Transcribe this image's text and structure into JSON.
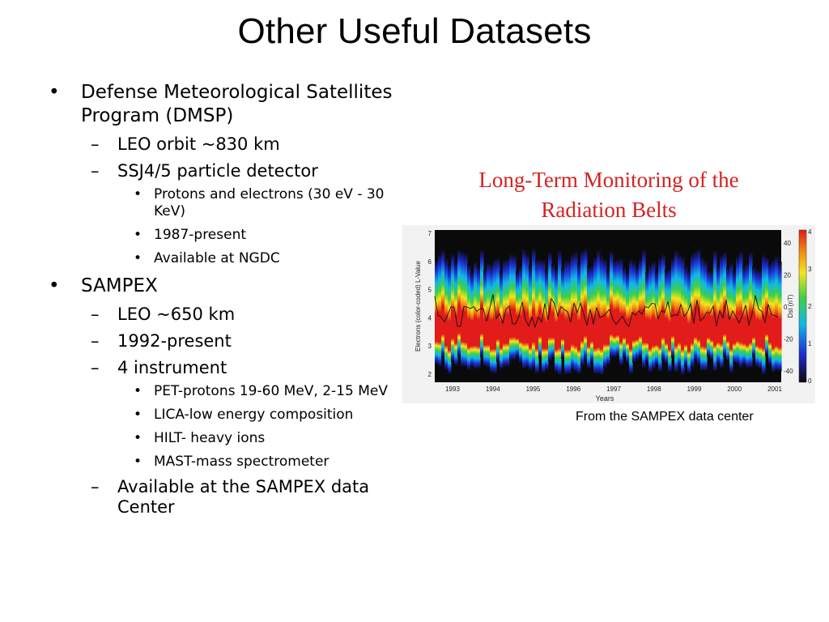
{
  "slide": {
    "title": "Other Useful Datasets",
    "bullets": [
      {
        "text": "Defense Meteorological Satellites Program (DMSP)",
        "children": [
          {
            "text": "LEO orbit ~830 km",
            "children": []
          },
          {
            "text": "SSJ4/5 particle detector",
            "children": [
              {
                "text": "Protons and electrons (30 eV - 30 KeV)"
              },
              {
                "text": "1987-present"
              },
              {
                "text": "Available at NGDC"
              }
            ]
          }
        ]
      },
      {
        "text": "SAMPEX",
        "children": [
          {
            "text": "LEO ~650 km",
            "children": []
          },
          {
            "text": "1992-present",
            "children": []
          },
          {
            "text": "4 instrument",
            "children": [
              {
                "text": "PET-protons 19-60 MeV, 2-15 MeV"
              },
              {
                "text": "LICA-low energy composition"
              },
              {
                "text": "HILT- heavy ions"
              },
              {
                "text": "MAST-mass spectrometer"
              }
            ]
          },
          {
            "text": "Available at the SAMPEX data Center",
            "children": []
          }
        ]
      }
    ],
    "figure": {
      "title_line1": "Long-Term Monitoring of the",
      "title_line2": "Radiation Belts",
      "title_color": "#d42222",
      "caption": "From the SAMPEX data center",
      "ylabel_left": "Electrons (color-coded) L-Value",
      "ylabel_right": "Dst (nT)",
      "xlabel": "Years",
      "x_ticks": [
        "1993",
        "1994",
        "1995",
        "1996",
        "1997",
        "1998",
        "1999",
        "2000",
        "2001"
      ],
      "y_ticks_left": [
        "2",
        "3",
        "4",
        "5",
        "6",
        "7"
      ],
      "y_ticks_right": [
        "40",
        "20",
        "0",
        "-20",
        "-40"
      ],
      "colorbar_ticks": [
        "4",
        "3",
        "2",
        "1",
        "0"
      ]
    }
  }
}
